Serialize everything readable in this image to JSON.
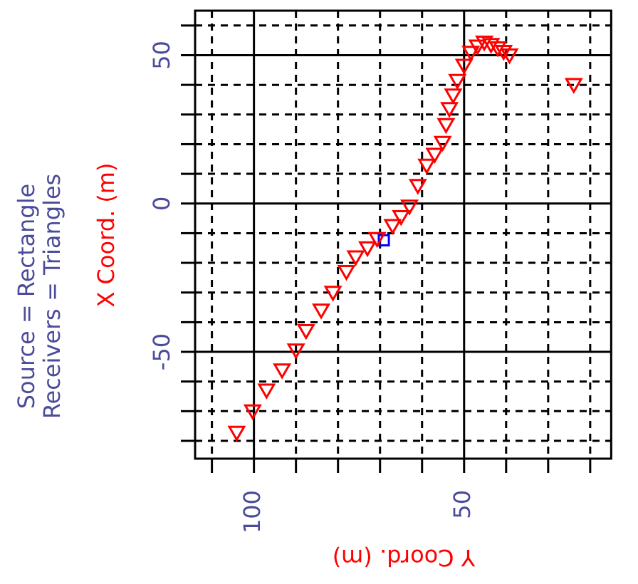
{
  "chart_data": {
    "type": "scatter",
    "xlabel": "Y Coord. (m)",
    "ylabel": "X Coord. (m)",
    "annotations": [
      "Source = Rectangle",
      "Receivers = Triangles"
    ],
    "xlim": [
      114,
      15
    ],
    "ylim": [
      -86,
      65
    ],
    "xticks": [
      {
        "value": 110,
        "label": null
      },
      100,
      {
        "value": 90,
        "label": null
      },
      {
        "value": 80,
        "label": null
      },
      {
        "value": 70,
        "label": null
      },
      {
        "value": 60,
        "label": null
      },
      50,
      {
        "value": 40,
        "label": null
      },
      {
        "value": 30,
        "label": null
      },
      {
        "value": 20,
        "label": null
      }
    ],
    "yticks": [
      {
        "value": -80,
        "label": null
      },
      {
        "value": -70,
        "label": null
      },
      {
        "value": -60,
        "label": null
      },
      -50,
      {
        "value": -40,
        "label": null
      },
      {
        "value": -30,
        "label": null
      },
      {
        "value": -20,
        "label": null
      },
      {
        "value": -10,
        "label": null
      },
      0,
      {
        "value": 10,
        "label": null
      },
      {
        "value": 20,
        "label": null
      },
      {
        "value": 30,
        "label": null
      },
      {
        "value": 40,
        "label": null
      },
      50,
      {
        "value": 60,
        "label": null
      }
    ],
    "grid": true,
    "legend": false,
    "series": [
      {
        "type": "scatter",
        "marker": "triangle",
        "color": "#ff0000",
        "x": [
          104.1,
          100.3,
          97,
          93.3,
          90,
          87.6,
          84,
          81.2,
          78,
          75.8,
          73,
          70.7,
          67,
          65,
          63,
          61,
          58.9,
          57,
          55.1,
          54.3,
          53.5,
          52.6,
          51.6,
          50,
          48.4,
          46.8,
          45.2,
          43.6,
          42,
          40.6,
          39.2,
          23.9
        ],
        "values": [
          -76.7,
          -69.5,
          -62.5,
          -55.7,
          -49,
          -42.4,
          -35.5,
          -29.5,
          -22.5,
          -17.6,
          -14.5,
          -11.4,
          -7,
          -4,
          -0.5,
          6.5,
          13.3,
          17,
          21,
          27,
          32.4,
          37,
          41.9,
          47,
          51.4,
          53.5,
          54.8,
          54,
          52.9,
          51.7,
          50.5,
          40.5
        ]
      },
      {
        "type": "scatter",
        "marker": "square",
        "color": "#0000ff",
        "x": [
          69.1
        ],
        "values": [
          -12.4
        ]
      }
    ]
  }
}
